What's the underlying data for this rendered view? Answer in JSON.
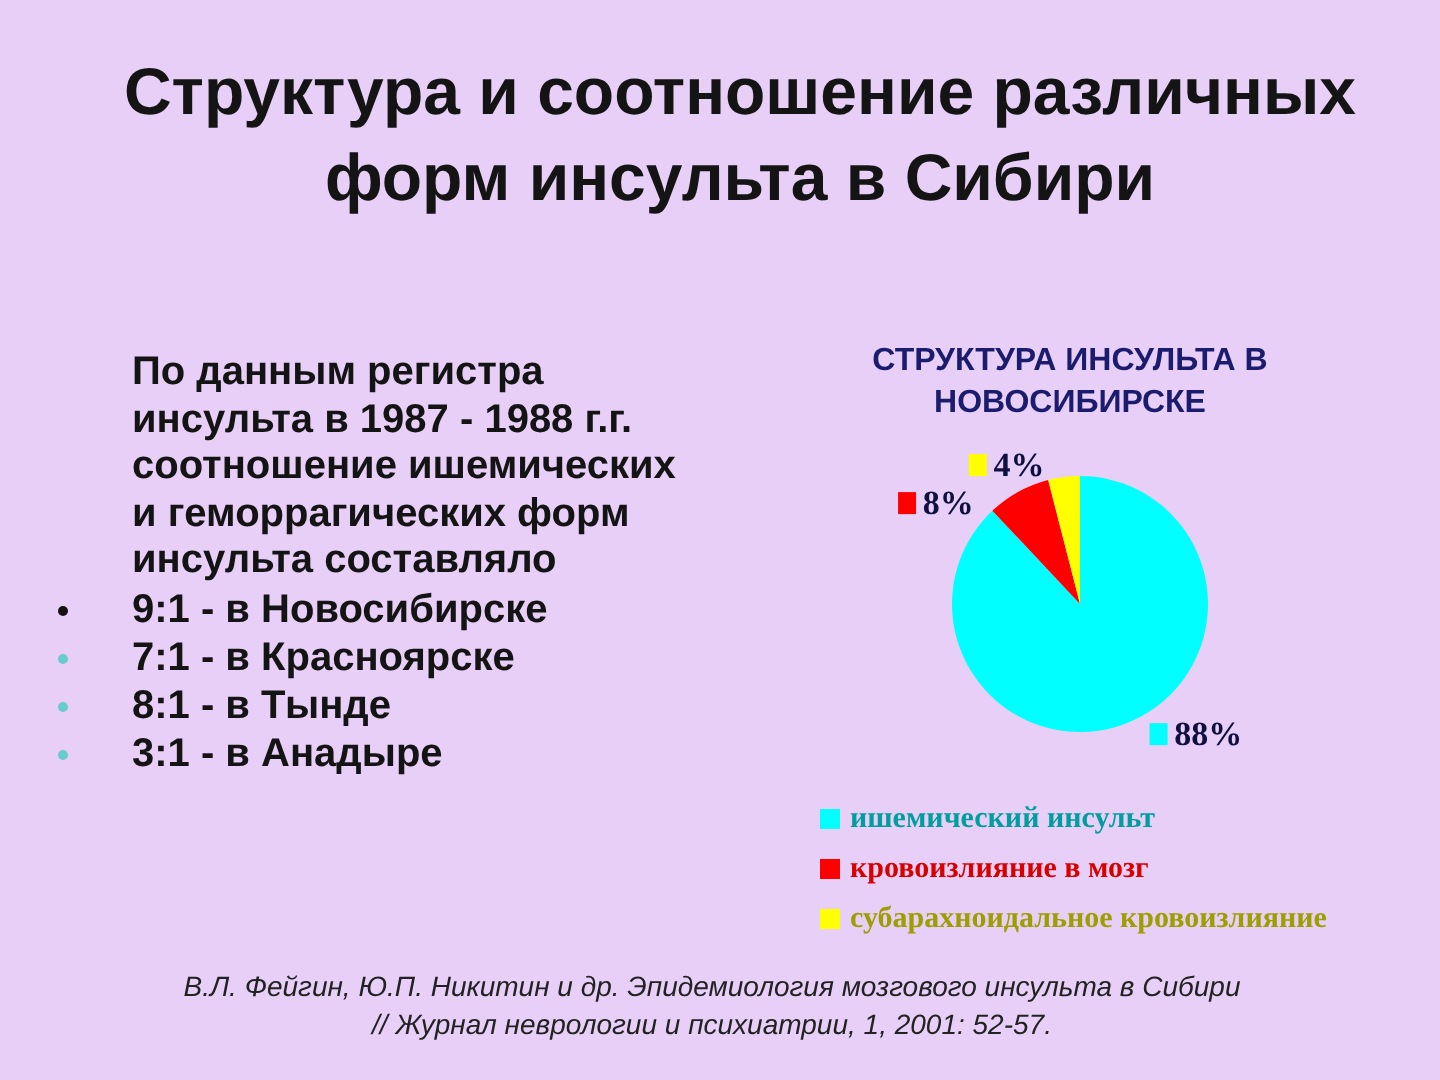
{
  "chart_data": {
    "type": "pie",
    "title": "Структура и соотношение различных форм инсульта в Сибири",
    "subtitle": "СТРУКТУРА ИНСУЛЬТА В НОВОСИБИРСКЕ",
    "categories": [
      "ишемический инсульт",
      "кровоизлияние в мозг",
      "субарахноидальное кровоизлияние"
    ],
    "values": [
      88,
      8,
      4
    ],
    "value_labels": [
      "88%",
      "8%",
      "4%"
    ],
    "colors": [
      "#00ffff",
      "#ff0000",
      "#ffff00"
    ],
    "legend": "bottom",
    "annotations": [
      "По данным регистра инсульта в 1987 - 1988 г.г. соотношение ишемических и геморрагических форм инсульта составляло",
      "9:1 - в Новосибирске",
      "7:1 - в Красноярске",
      "8:1 - в Тынде",
      "3:1 - в Анадыре",
      "В.Л. Фейгин, Ю.П. Никитин и др. Эпидемиология мозгового инсульта в Сибири // Журнал неврологии и психиатрии, 1, 2001: 52-57."
    ]
  }
}
